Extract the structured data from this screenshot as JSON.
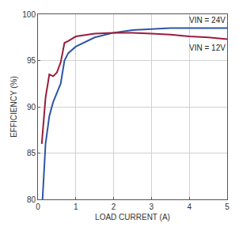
{
  "chart_data": {
    "type": "line",
    "x_label": "LOAD CURRENT (A)",
    "y_label": "EFFICIENCY (%)",
    "series": [
      {
        "name": "VIN = 24V",
        "color": "#2f55a8",
        "x": [
          0.12,
          0.2,
          0.3,
          0.4,
          0.5,
          0.6,
          0.7,
          0.8,
          1.0,
          1.5,
          2.0,
          2.5,
          3.0,
          3.5,
          4.0,
          4.5,
          5.0
        ],
        "values": [
          80,
          86,
          89,
          90.5,
          91.5,
          92.5,
          95.0,
          95.8,
          96.5,
          97.5,
          98.0,
          98.3,
          98.4,
          98.5,
          98.5,
          98.5,
          98.5
        ]
      },
      {
        "name": "VIN = 12V",
        "color": "#9b1c3c",
        "x": [
          0.1,
          0.2,
          0.3,
          0.4,
          0.5,
          0.6,
          0.7,
          0.8,
          1.0,
          1.5,
          2.0,
          2.5,
          3.0,
          3.5,
          4.0,
          4.5,
          5.0
        ],
        "values": [
          86,
          91,
          93.5,
          93.3,
          93.7,
          94.8,
          96.9,
          97.1,
          97.6,
          97.9,
          98.0,
          98.0,
          97.9,
          97.8,
          97.6,
          97.5,
          97.3
        ]
      }
    ],
    "xlim": [
      0,
      5
    ],
    "xticks": [
      0,
      1,
      2,
      3,
      4,
      5
    ],
    "ylim": [
      80,
      100
    ],
    "yticks": [
      80,
      85,
      90,
      95,
      100
    ],
    "grid": true
  }
}
